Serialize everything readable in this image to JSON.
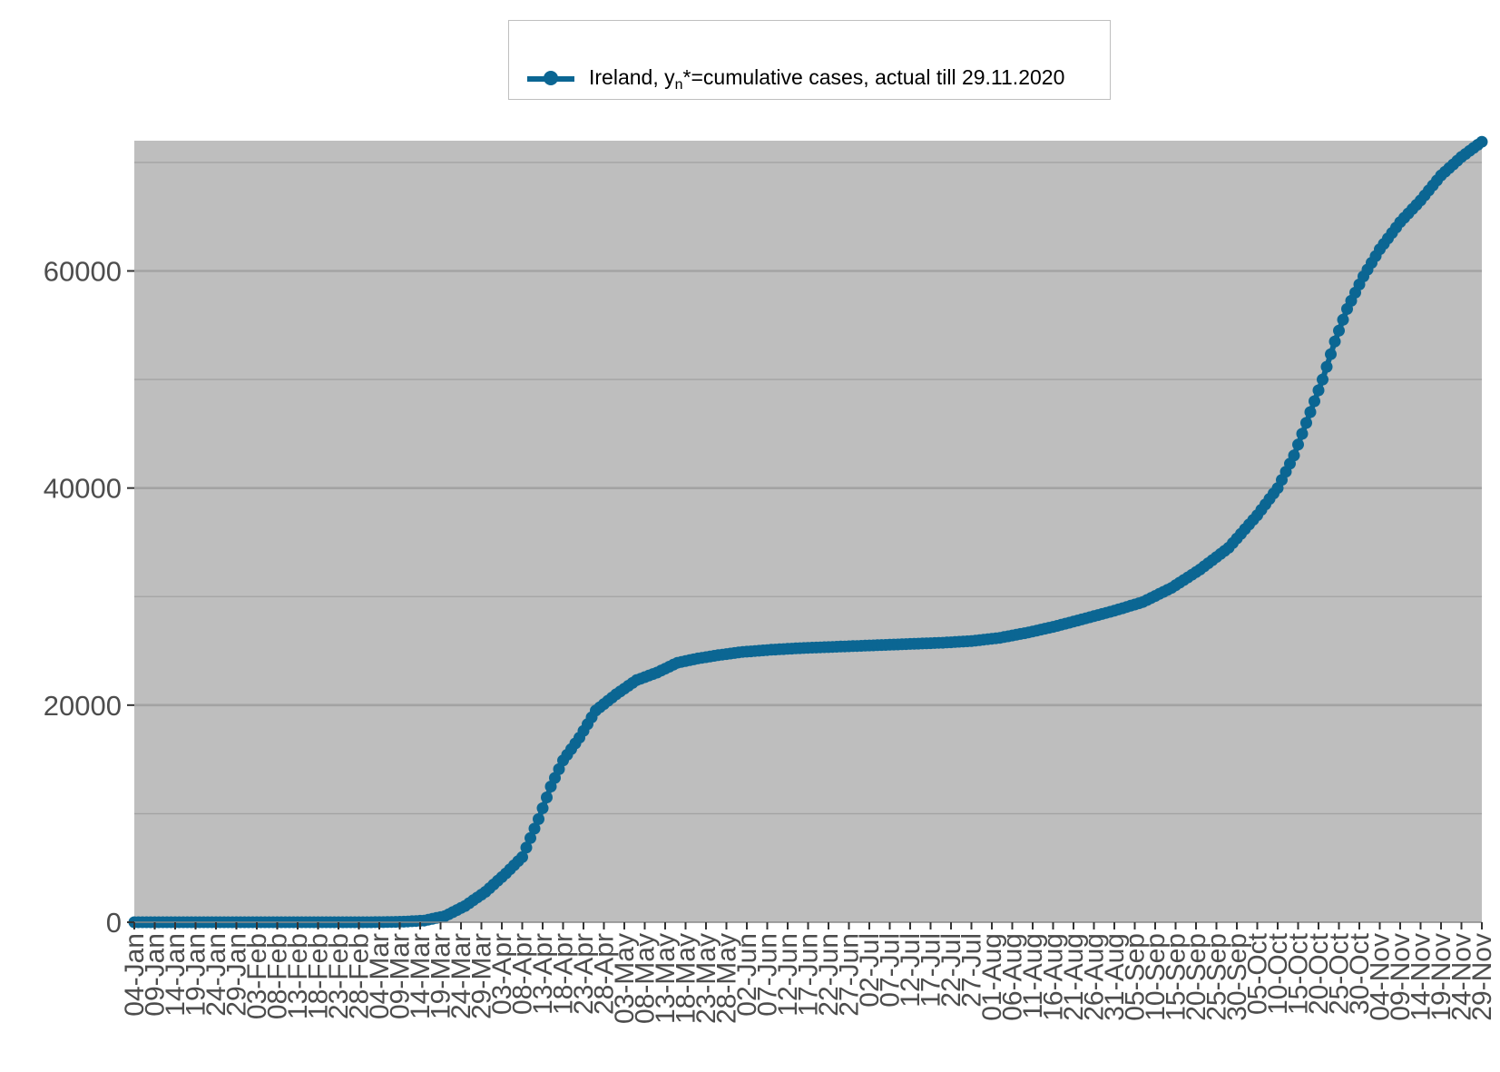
{
  "chart_data": {
    "type": "line",
    "title": "",
    "xlabel": "",
    "ylabel": "",
    "ylim": [
      0,
      72000
    ],
    "y_ticks": [
      0,
      20000,
      40000,
      60000
    ],
    "y_tick_labels": [
      "0",
      "20000",
      "40000",
      "60000"
    ],
    "grid": true,
    "legend_position": "top-center",
    "series_color": "#0b6693",
    "panel_background": "#bebebe",
    "x_start": "2020-01-04",
    "x_end": "2020-11-29",
    "x_tick_labels": [
      "04-Jan",
      "09-Jan",
      "14-Jan",
      "19-Jan",
      "24-Jan",
      "29-Jan",
      "03-Feb",
      "08-Feb",
      "13-Feb",
      "18-Feb",
      "23-Feb",
      "28-Feb",
      "04-Mar",
      "09-Mar",
      "14-Mar",
      "19-Mar",
      "24-Mar",
      "29-Mar",
      "03-Apr",
      "08-Apr",
      "13-Apr",
      "18-Apr",
      "23-Apr",
      "28-Apr",
      "03-May",
      "08-May",
      "13-May",
      "18-May",
      "23-May",
      "28-May",
      "02-Jun",
      "07-Jun",
      "12-Jun",
      "17-Jun",
      "22-Jun",
      "27-Jun",
      "02-Jul",
      "07-Jul",
      "12-Jul",
      "17-Jul",
      "22-Jul",
      "27-Jul",
      "01-Aug",
      "06-Aug",
      "11-Aug",
      "16-Aug",
      "21-Aug",
      "26-Aug",
      "31-Aug",
      "05-Sep",
      "10-Sep",
      "15-Sep",
      "20-Sep",
      "25-Sep",
      "30-Sep",
      "05-Oct",
      "10-Oct",
      "15-Oct",
      "20-Oct",
      "25-Oct",
      "30-Oct",
      "04-Nov",
      "09-Nov",
      "14-Nov",
      "19-Nov",
      "24-Nov",
      "29-Nov"
    ],
    "series": [
      {
        "name": "Ireland, yn*=cumulative cases, actual till 29.11.2020",
        "points": [
          [
            "2020-01-04",
            0
          ],
          [
            "2020-02-29",
            0
          ],
          [
            "2020-03-05",
            10
          ],
          [
            "2020-03-10",
            50
          ],
          [
            "2020-03-15",
            150
          ],
          [
            "2020-03-20",
            550
          ],
          [
            "2020-03-25",
            1500
          ],
          [
            "2020-03-30",
            2800
          ],
          [
            "2020-04-04",
            4500
          ],
          [
            "2020-04-08",
            6000
          ],
          [
            "2020-04-12",
            9500
          ],
          [
            "2020-04-15",
            12500
          ],
          [
            "2020-04-18",
            14900
          ],
          [
            "2020-04-22",
            17000
          ],
          [
            "2020-04-26",
            19500
          ],
          [
            "2020-05-01",
            21000
          ],
          [
            "2020-05-06",
            22300
          ],
          [
            "2020-05-11",
            23000
          ],
          [
            "2020-05-16",
            23900
          ],
          [
            "2020-05-21",
            24300
          ],
          [
            "2020-05-26",
            24600
          ],
          [
            "2020-06-01",
            24900
          ],
          [
            "2020-06-08",
            25100
          ],
          [
            "2020-06-15",
            25250
          ],
          [
            "2020-06-22",
            25350
          ],
          [
            "2020-06-29",
            25450
          ],
          [
            "2020-07-06",
            25550
          ],
          [
            "2020-07-13",
            25650
          ],
          [
            "2020-07-20",
            25750
          ],
          [
            "2020-07-27",
            25900
          ],
          [
            "2020-08-03",
            26200
          ],
          [
            "2020-08-10",
            26700
          ],
          [
            "2020-08-17",
            27300
          ],
          [
            "2020-08-24",
            28000
          ],
          [
            "2020-08-31",
            28700
          ],
          [
            "2020-09-07",
            29500
          ],
          [
            "2020-09-14",
            30800
          ],
          [
            "2020-09-21",
            32500
          ],
          [
            "2020-09-28",
            34500
          ],
          [
            "2020-10-05",
            37500
          ],
          [
            "2020-10-10",
            40000
          ],
          [
            "2020-10-14",
            43000
          ],
          [
            "2020-10-18",
            47000
          ],
          [
            "2020-10-21",
            50000
          ],
          [
            "2020-10-24",
            53500
          ],
          [
            "2020-10-27",
            56500
          ],
          [
            "2020-10-31",
            59500
          ],
          [
            "2020-11-04",
            62000
          ],
          [
            "2020-11-09",
            64500
          ],
          [
            "2020-11-14",
            66500
          ],
          [
            "2020-11-19",
            68800
          ],
          [
            "2020-11-24",
            70500
          ],
          [
            "2020-11-29",
            71900
          ]
        ]
      }
    ]
  }
}
